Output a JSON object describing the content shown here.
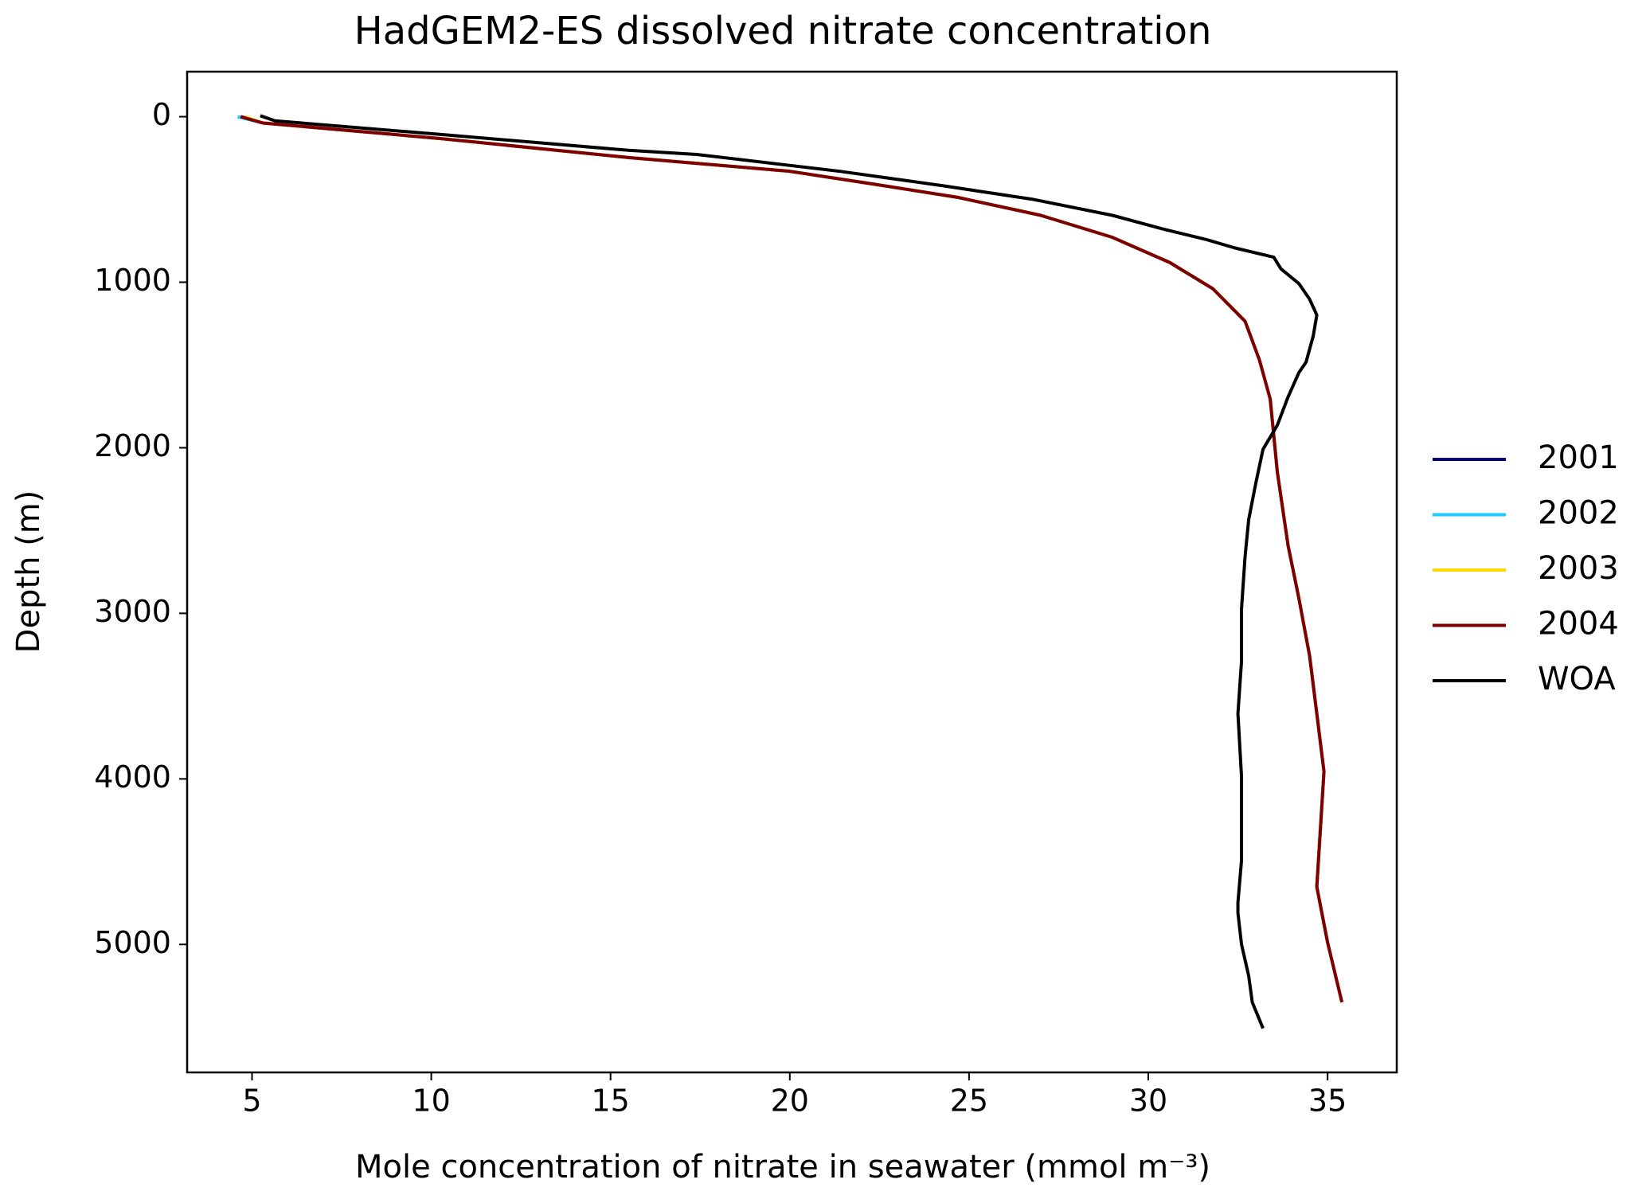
{
  "chart_data": {
    "type": "line",
    "title": "HadGEM2-ES dissolved nitrate concentration",
    "x_label": "Mole concentration of nitrate in seawater (mmol m⁻³)",
    "y_label": "Depth (m)",
    "xlim": [
      3.19,
      36.93
    ],
    "xticks": [
      5,
      10,
      15,
      20,
      25,
      30,
      35
    ],
    "ylim": [
      5773,
      -272
    ],
    "yticks": [
      0,
      1000,
      2000,
      3000,
      4000,
      5000
    ],
    "legend": "outside-right",
    "series": [
      {
        "name": "2001",
        "color": "#00007f",
        "x": [
          4.7,
          5.3,
          10.3,
          15.5,
          20,
          22.3,
          24.7,
          27,
          29,
          30.6,
          31.8,
          32.7,
          33.1,
          33.4,
          33.6,
          33.9,
          34.2,
          34.5,
          34.7,
          34.9,
          34.7,
          35,
          35.4
        ],
        "values": [
          0,
          38,
          133,
          247,
          330,
          406,
          488,
          596,
          729,
          881,
          1039,
          1236,
          1470,
          1705,
          2148,
          2592,
          2909,
          3258,
          3606,
          3955,
          4652,
          4987,
          5349
        ]
      },
      {
        "name": "2002",
        "color": "#1fc8ff",
        "x": [
          4.6,
          5.3,
          10.3,
          15.5,
          20,
          22.3,
          24.7,
          27,
          29,
          30.6,
          31.8,
          32.7,
          33.1,
          33.4,
          33.6,
          33.9,
          34.2,
          34.5,
          34.7,
          34.9,
          34.7,
          35,
          35.4
        ],
        "values": [
          0,
          38,
          133,
          247,
          330,
          406,
          488,
          596,
          729,
          881,
          1039,
          1236,
          1470,
          1705,
          2148,
          2592,
          2909,
          3258,
          3606,
          3955,
          4652,
          4987,
          5349
        ]
      },
      {
        "name": "2003",
        "color": "#ffd700",
        "x": [
          4.8,
          5.3,
          10.3,
          15.5,
          20,
          22.3,
          24.7,
          27,
          29,
          30.6,
          31.8,
          32.7,
          33.1,
          33.4,
          33.6,
          33.9,
          34.2,
          34.5,
          34.7,
          34.9,
          34.7,
          35,
          35.4
        ],
        "values": [
          0,
          38,
          133,
          247,
          330,
          406,
          488,
          596,
          729,
          881,
          1039,
          1236,
          1470,
          1705,
          2148,
          2592,
          2909,
          3258,
          3606,
          3955,
          4652,
          4987,
          5349
        ]
      },
      {
        "name": "2004",
        "color": "#7f0000",
        "x": [
          4.68,
          5.3,
          10.3,
          15.5,
          20,
          22.3,
          24.7,
          27,
          29,
          30.6,
          31.8,
          32.7,
          33.1,
          33.4,
          33.6,
          33.9,
          34.2,
          34.5,
          34.7,
          34.9,
          34.7,
          35,
          35.4
        ],
        "values": [
          0,
          38,
          133,
          247,
          330,
          406,
          488,
          596,
          729,
          881,
          1039,
          1236,
          1470,
          1705,
          2148,
          2592,
          2909,
          3258,
          3606,
          3955,
          4652,
          4987,
          5349
        ]
      },
      {
        "name": "WOA",
        "color": "#000000",
        "x": [
          5.23,
          5.64,
          10.3,
          15.5,
          17.4,
          21.4,
          24.3,
          26.8,
          29,
          30.4,
          31.6,
          32.4,
          33.5,
          33.7,
          34.2,
          34.5,
          34.7,
          34.6,
          34.4,
          34.2,
          33.9,
          33.6,
          33.2,
          33.0,
          32.8,
          32.7,
          32.6,
          32.6,
          32.5,
          32.6,
          32.6,
          32.5,
          32.5,
          32.6,
          32.8,
          32.9,
          33.2
        ],
        "values": [
          -6,
          25,
          108,
          203,
          228,
          330,
          418,
          500,
          596,
          678,
          741,
          792,
          849,
          919,
          1008,
          1103,
          1198,
          1325,
          1483,
          1546,
          1692,
          1863,
          2009,
          2212,
          2434,
          2655,
          2972,
          3289,
          3606,
          3986,
          4493,
          4747,
          4810,
          4999,
          5190,
          5349,
          5507
        ]
      }
    ]
  }
}
